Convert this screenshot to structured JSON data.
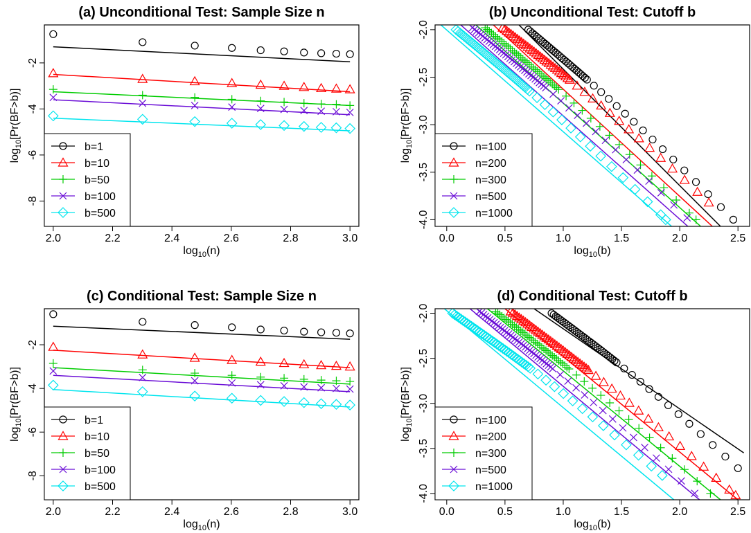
{
  "series_colors": [
    "#000000",
    "#ff0000",
    "#00cc00",
    "#6a0dd6",
    "#00e5ee"
  ],
  "series_markers": [
    "circle",
    "triangle",
    "plus",
    "cross",
    "diamond"
  ],
  "chart_data": [
    {
      "type": "scatter",
      "title": "(a) Unconditional Test: Sample Size n",
      "xlabel": "log10(n)",
      "ylabel": "log10[Pr(BF>b)]",
      "xlim": [
        1.97,
        3.03
      ],
      "ylim": [
        -9.1,
        -0.35
      ],
      "xticks": [
        "2.0",
        "2.2",
        "2.4",
        "2.6",
        "2.8",
        "3.0"
      ],
      "xtick_values": [
        2.0,
        2.2,
        2.4,
        2.6,
        2.8,
        3.0
      ],
      "yticks": [
        "-2",
        "-4",
        "-6",
        "-8"
      ],
      "ytick_values": [
        -2,
        -4,
        -6,
        -8
      ],
      "legend": "bottom-left",
      "x": [
        2.0,
        2.301,
        2.477,
        2.602,
        2.699,
        2.778,
        2.845,
        2.903,
        2.954,
        3.0
      ],
      "series": [
        {
          "name": "b=1",
          "values": [
            -0.75,
            -1.1,
            -1.25,
            -1.35,
            -1.45,
            -1.5,
            -1.55,
            -1.58,
            -1.6,
            -1.62
          ],
          "fit": [
            -1.3,
            -1.95
          ]
        },
        {
          "name": "b=10",
          "values": [
            -2.45,
            -2.7,
            -2.8,
            -2.88,
            -2.95,
            -3.0,
            -3.05,
            -3.1,
            -3.12,
            -3.15
          ],
          "fit": [
            -2.5,
            -3.25
          ]
        },
        {
          "name": "b=50",
          "values": [
            -3.15,
            -3.4,
            -3.5,
            -3.58,
            -3.65,
            -3.7,
            -3.75,
            -3.78,
            -3.8,
            -3.85
          ],
          "fit": [
            -3.25,
            -3.85
          ]
        },
        {
          "name": "b=100",
          "values": [
            -3.5,
            -3.75,
            -3.85,
            -3.92,
            -3.98,
            -4.02,
            -4.07,
            -4.1,
            -4.12,
            -4.15
          ],
          "fit": [
            -3.6,
            -4.25
          ]
        },
        {
          "name": "b=500",
          "values": [
            -4.3,
            -4.45,
            -4.55,
            -4.62,
            -4.68,
            -4.72,
            -4.76,
            -4.8,
            -4.82,
            -4.85
          ],
          "fit": [
            -4.4,
            -4.95
          ]
        }
      ]
    },
    {
      "type": "scatter",
      "title": "(b) Unconditional Test: Cutoff b",
      "xlabel": "log10(b)",
      "ylabel": "log10[Pr(BF>b)]",
      "xlim": [
        -0.1,
        2.6
      ],
      "ylim": [
        -4.07,
        -1.95
      ],
      "xticks": [
        "0.0",
        "0.5",
        "1.0",
        "1.5",
        "2.0",
        "2.5"
      ],
      "xtick_values": [
        0.0,
        0.5,
        1.0,
        1.5,
        2.0,
        2.5
      ],
      "yticks": [
        "-2.0",
        "-2.5",
        "-3.0",
        "-3.5",
        "-4.0"
      ],
      "ytick_values": [
        -2.0,
        -2.5,
        -3.0,
        -3.5,
        -4.0
      ],
      "legend": "bottom-left",
      "series": [
        {
          "name": "n=100",
          "start": [
            0.7,
            -2.0
          ],
          "end": [
            2.46,
            -4.0
          ],
          "fit": [
            [
              0.62,
              -1.95
            ],
            [
              2.35,
              -4.07
            ]
          ],
          "dense_until": 1.2
        },
        {
          "name": "n=200",
          "start": [
            0.48,
            -1.98
          ],
          "end": [
            2.25,
            -3.82
          ],
          "fit": [
            [
              0.4,
              -1.95
            ],
            [
              2.28,
              -4.07
            ]
          ],
          "dense_until": 1.05
        },
        {
          "name": "n=300",
          "start": [
            0.33,
            -1.98
          ],
          "end": [
            2.14,
            -4.0
          ],
          "fit": [
            [
              0.25,
              -1.95
            ],
            [
              2.18,
              -4.07
            ]
          ],
          "dense_until": 0.95
        },
        {
          "name": "n=500",
          "start": [
            0.22,
            -1.98
          ],
          "end": [
            2.08,
            -4.0
          ],
          "fit": [
            [
              0.12,
              -1.95
            ],
            [
              2.07,
              -4.07
            ]
          ],
          "dense_until": 0.85
        },
        {
          "name": "n=1000",
          "start": [
            0.08,
            -2.0
          ],
          "end": [
            1.88,
            -4.0
          ],
          "fit": [
            [
              -0.05,
              -1.95
            ],
            [
              1.93,
              -4.07
            ]
          ],
          "dense_until": 0.7
        }
      ]
    },
    {
      "type": "scatter",
      "title": "(c) Conditional Test: Sample Size n",
      "xlabel": "log10(n)",
      "ylabel": "log10[Pr(BF>b)]",
      "xlim": [
        1.97,
        3.03
      ],
      "ylim": [
        -9.1,
        -0.35
      ],
      "xticks": [
        "2.0",
        "2.2",
        "2.4",
        "2.6",
        "2.8",
        "3.0"
      ],
      "xtick_values": [
        2.0,
        2.2,
        2.4,
        2.6,
        2.8,
        3.0
      ],
      "yticks": [
        "-2",
        "-4",
        "-6",
        "-8"
      ],
      "ytick_values": [
        -2,
        -4,
        -6,
        -8
      ],
      "legend": "bottom-left",
      "x": [
        2.0,
        2.301,
        2.477,
        2.602,
        2.699,
        2.778,
        2.845,
        2.903,
        2.954,
        3.0
      ],
      "series": [
        {
          "name": "b=1",
          "values": [
            -0.6,
            -0.95,
            -1.1,
            -1.2,
            -1.3,
            -1.35,
            -1.4,
            -1.43,
            -1.45,
            -1.48
          ],
          "fit": [
            -1.15,
            -1.75
          ]
        },
        {
          "name": "b=10",
          "values": [
            -2.1,
            -2.45,
            -2.6,
            -2.7,
            -2.78,
            -2.84,
            -2.9,
            -2.94,
            -2.97,
            -3.0
          ],
          "fit": [
            -2.25,
            -3.05
          ]
        },
        {
          "name": "b=50",
          "values": [
            -2.85,
            -3.15,
            -3.3,
            -3.4,
            -3.48,
            -3.53,
            -3.58,
            -3.62,
            -3.65,
            -3.68
          ],
          "fit": [
            -3.05,
            -3.8
          ]
        },
        {
          "name": "b=100",
          "values": [
            -3.2,
            -3.5,
            -3.65,
            -3.75,
            -3.83,
            -3.88,
            -3.93,
            -3.97,
            -4.0,
            -4.03
          ],
          "fit": [
            -3.4,
            -4.15
          ]
        },
        {
          "name": "b=500",
          "values": [
            -3.85,
            -4.15,
            -4.35,
            -4.45,
            -4.55,
            -4.6,
            -4.65,
            -4.7,
            -4.73,
            -4.76
          ],
          "fit": [
            -4.05,
            -4.85
          ]
        }
      ]
    },
    {
      "type": "scatter",
      "title": "(d) Conditional Test: Cutoff b",
      "xlabel": "log10(b)",
      "ylabel": "log10[Pr(BF>b)]",
      "xlim": [
        -0.1,
        2.6
      ],
      "ylim": [
        -4.07,
        -1.95
      ],
      "xticks": [
        "0.0",
        "0.5",
        "1.0",
        "1.5",
        "2.0",
        "2.5"
      ],
      "xtick_values": [
        0.0,
        0.5,
        1.0,
        1.5,
        2.0,
        2.5
      ],
      "yticks": [
        "-2.0",
        "-2.5",
        "-3.0",
        "-3.5",
        "-4.0"
      ],
      "ytick_values": [
        -2.0,
        -2.5,
        -3.0,
        -3.5,
        -4.0
      ],
      "legend": "bottom-left",
      "series": [
        {
          "name": "n=100",
          "start": [
            0.9,
            -2.0
          ],
          "end": [
            2.5,
            -3.72
          ],
          "fit": [
            [
              0.75,
              -1.95
            ],
            [
              2.55,
              -3.55
            ]
          ],
          "dense_until": 1.45
        },
        {
          "name": "n=200",
          "start": [
            0.55,
            -1.98
          ],
          "end": [
            2.48,
            -4.02
          ],
          "fit": [
            [
              0.5,
              -1.95
            ],
            [
              2.5,
              -4.07
            ]
          ],
          "dense_until": 1.2
        },
        {
          "name": "n=300",
          "start": [
            0.42,
            -1.98
          ],
          "end": [
            2.28,
            -4.02
          ],
          "fit": [
            [
              0.35,
              -1.95
            ],
            [
              2.35,
              -4.07
            ]
          ],
          "dense_until": 1.05
        },
        {
          "name": "n=500",
          "start": [
            0.28,
            -1.98
          ],
          "end": [
            2.13,
            -4.0
          ],
          "fit": [
            [
              0.2,
              -1.95
            ],
            [
              2.17,
              -4.07
            ]
          ],
          "dense_until": 0.9
        },
        {
          "name": "n=1000",
          "start": [
            0.05,
            -2.0
          ],
          "end": [
            1.85,
            -3.8
          ],
          "fit": [
            [
              -0.02,
              -1.95
            ],
            [
              1.95,
              -4.07
            ]
          ],
          "dense_until": 0.7
        }
      ]
    }
  ]
}
